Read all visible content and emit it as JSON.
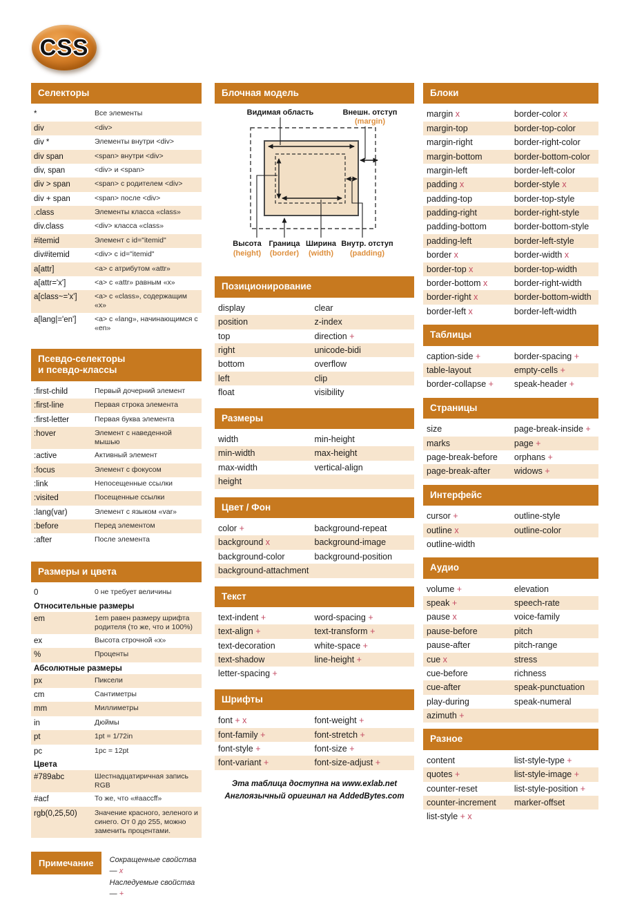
{
  "logo": {
    "text": "CSS"
  },
  "colors": {
    "header_bg": "#C7791F",
    "header_text": "#FFFFFF",
    "row_alt": "#F7E5CE",
    "mark": "#C34A62",
    "diagram_fill": "#F2DFC5",
    "diagram_orange": "#DE8F3D"
  },
  "diagram": {
    "title": "Блочная модель",
    "labels": {
      "visible_area": "Видимая область",
      "margin_ru": "Внешн. отступ",
      "margin_en": "(margin)",
      "height_ru": "Высота",
      "height_en": "(height)",
      "border_ru": "Граница",
      "border_en": "(border)",
      "width_ru": "Ширина",
      "width_en": "(width)",
      "padding_ru": "Внутр. отступ",
      "padding_en": "(padding)"
    }
  },
  "left_tables": {
    "selectors": {
      "title": "Селекторы",
      "rows": [
        {
          "t": "*",
          "d": "Все элементы"
        },
        {
          "t": "div",
          "d": "<div>"
        },
        {
          "t": "div *",
          "d": "Элементы внутри <div>"
        },
        {
          "t": "div span",
          "d": "<span> внутри <div>"
        },
        {
          "t": "div, span",
          "d": "<div> и <span>"
        },
        {
          "t": "div > span",
          "d": "<span> с родителем <div>"
        },
        {
          "t": "div + span",
          "d": "<span> после <div>"
        },
        {
          "t": ".class",
          "d": "Элементы класса «class»"
        },
        {
          "t": "div.class",
          "d": "<div> класса «class»"
        },
        {
          "t": "#itemid",
          "d": "Элемент с id=\"itemid\""
        },
        {
          "t": "div#itemid",
          "d": "<div> с id=\"itemid\""
        },
        {
          "t": "a[attr]",
          "d": "<a> с атрибутом «attr»"
        },
        {
          "t": "a[attr='x']",
          "d": "<a> с «attr» равным «x»"
        },
        {
          "t": "a[class~='x']",
          "d": "<a> с «class», содержащим «x»"
        },
        {
          "t": "a[lang|='en']",
          "d": "<a> с «lang», начинающимся с «en»"
        }
      ]
    },
    "pseudo": {
      "title": [
        "Псевдо-селекторы",
        "и псевдо-классы"
      ],
      "rows": [
        {
          "t": ":first-child",
          "d": "Первый дочерний элемент"
        },
        {
          "t": ":first-line",
          "d": "Первая строка элемента"
        },
        {
          "t": ":first-letter",
          "d": "Первая буква элемента"
        },
        {
          "t": ":hover",
          "d": "Элемент с наведенной мышью"
        },
        {
          "t": ":active",
          "d": "Активный элемент"
        },
        {
          "t": ":focus",
          "d": "Элемент с фокусом"
        },
        {
          "t": ":link",
          "d": "Непосещенные ссылки"
        },
        {
          "t": ":visited",
          "d": "Посещенные ссылки"
        },
        {
          "t": ":lang(var)",
          "d": "Элемент с языком «var»"
        },
        {
          "t": ":before",
          "d": "Перед элементом"
        },
        {
          "t": ":after",
          "d": "После элемента"
        }
      ]
    },
    "sizes_colors": {
      "title": "Размеры и цвета",
      "rows": [
        {
          "t": "0",
          "d": "0 не требует величины"
        },
        {
          "sub": "Относительные размеры"
        },
        {
          "t": "em",
          "d": "1em равен размеру шрифта родителя (то же, что и 100%)"
        },
        {
          "t": "ex",
          "d": "Высота строчной «x»"
        },
        {
          "t": "%",
          "d": "Проценты"
        },
        {
          "sub": "Абсолютные размеры"
        },
        {
          "t": "px",
          "d": "Пиксели"
        },
        {
          "t": "cm",
          "d": "Сантиметры"
        },
        {
          "t": "mm",
          "d": "Миллиметры"
        },
        {
          "t": "in",
          "d": "Дюймы"
        },
        {
          "t": "pt",
          "d": "1pt = 1/72in"
        },
        {
          "t": "pc",
          "d": "1pc = 12pt"
        },
        {
          "sub": "Цвета"
        },
        {
          "t": "#789abc",
          "d": "Шестнадцатиричная запись RGB"
        },
        {
          "t": "#acf",
          "d": "То же, что «#aaccff»"
        },
        {
          "t": "rgb(0,25,50)",
          "d": "Значение красного, зеленого и синего. От 0 до 255, можно заменить процентами."
        }
      ]
    }
  },
  "prop_tables": {
    "positioning": {
      "title": "Позиционирование",
      "rows": [
        [
          "display",
          "clear"
        ],
        [
          "position",
          "z-index"
        ],
        [
          "top",
          "direction +"
        ],
        [
          "right",
          "unicode-bidi"
        ],
        [
          "bottom",
          "overflow"
        ],
        [
          "left",
          "clip"
        ],
        [
          "float",
          "visibility"
        ]
      ]
    },
    "sizes": {
      "title": "Размеры",
      "rows": [
        [
          "width",
          "min-height"
        ],
        [
          "min-width",
          "max-height"
        ],
        [
          "max-width",
          "vertical-align"
        ],
        [
          "height",
          ""
        ]
      ]
    },
    "colorbg": {
      "title": "Цвет / Фон",
      "rows": [
        [
          "color +",
          "background-repeat"
        ],
        [
          "background x",
          "background-image"
        ],
        [
          "background-color",
          "background-position"
        ],
        [
          "background-attachment",
          ""
        ]
      ]
    },
    "text": {
      "title": "Текст",
      "rows": [
        [
          "text-indent +",
          "word-spacing +"
        ],
        [
          "text-align +",
          "text-transform +"
        ],
        [
          "text-decoration",
          "white-space +"
        ],
        [
          "text-shadow",
          "line-height +"
        ],
        [
          "letter-spacing +",
          ""
        ]
      ]
    },
    "fonts": {
      "title": "Шрифты",
      "rows": [
        [
          "font + x",
          "font-weight +"
        ],
        [
          "font-family +",
          "font-stretch +"
        ],
        [
          "font-style +",
          "font-size +"
        ],
        [
          "font-variant +",
          "font-size-adjust +"
        ]
      ]
    },
    "blocks": {
      "title": "Блоки",
      "rows": [
        [
          "margin x",
          "border-color x"
        ],
        [
          "margin-top",
          "border-top-color"
        ],
        [
          "margin-right",
          "border-right-color"
        ],
        [
          "margin-bottom",
          "border-bottom-color"
        ],
        [
          "margin-left",
          "border-left-color"
        ],
        [
          "padding x",
          "border-style x"
        ],
        [
          "padding-top",
          "border-top-style"
        ],
        [
          "padding-right",
          "border-right-style"
        ],
        [
          "padding-bottom",
          "border-bottom-style"
        ],
        [
          "padding-left",
          "border-left-style"
        ],
        [
          "border x",
          "border-width x"
        ],
        [
          "border-top x",
          "border-top-width"
        ],
        [
          "border-bottom x",
          "border-right-width"
        ],
        [
          "border-right x",
          "border-bottom-width"
        ],
        [
          "border-left x",
          "border-left-width"
        ]
      ]
    },
    "tables": {
      "title": "Таблицы",
      "rows": [
        [
          "caption-side +",
          "border-spacing +"
        ],
        [
          "table-layout",
          "empty-cells +"
        ],
        [
          "border-collapse +",
          "speak-header +"
        ]
      ]
    },
    "pages": {
      "title": "Страницы",
      "rows": [
        [
          "size",
          "page-break-inside +"
        ],
        [
          "marks",
          "page +"
        ],
        [
          "page-break-before",
          "orphans +"
        ],
        [
          "page-break-after",
          "widows +"
        ]
      ]
    },
    "interface": {
      "title": "Интерфейс",
      "rows": [
        [
          "cursor +",
          "outline-style"
        ],
        [
          "outline x",
          "outline-color"
        ],
        [
          "outline-width",
          ""
        ]
      ]
    },
    "audio": {
      "title": "Аудио",
      "rows": [
        [
          "volume +",
          "elevation"
        ],
        [
          "speak +",
          "speech-rate"
        ],
        [
          "pause x",
          "voice-family"
        ],
        [
          "pause-before",
          "pitch"
        ],
        [
          "pause-after",
          "pitch-range"
        ],
        [
          "cue x",
          "stress"
        ],
        [
          "cue-before",
          "richness"
        ],
        [
          "cue-after",
          "speak-punctuation"
        ],
        [
          "play-during",
          "speak-numeral"
        ],
        [
          "azimuth +",
          ""
        ]
      ]
    },
    "misc": {
      "title": "Разное",
      "rows": [
        [
          "content",
          "list-style-type +"
        ],
        [
          "quotes +",
          "list-style-image +"
        ],
        [
          "counter-reset",
          "list-style-position +"
        ],
        [
          "counter-increment",
          "marker-offset"
        ],
        [
          "list-style + x",
          ""
        ]
      ]
    }
  },
  "note": {
    "title": "Примечание",
    "lines": [
      {
        "text": "Сокращенные свойства —",
        "mark": "x"
      },
      {
        "text": "Наследуемые свойства —",
        "mark": "+"
      }
    ]
  },
  "footer": {
    "line1": "Эта таблица доступна на www.exlab.net",
    "line2": "Англоязычный оригинал на AddedBytes.com"
  }
}
